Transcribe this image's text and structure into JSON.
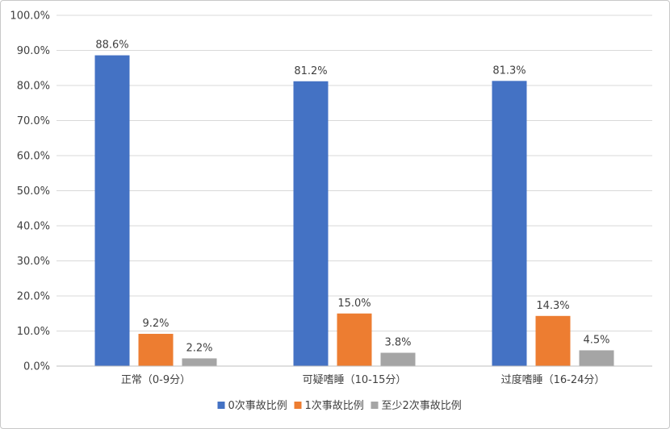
{
  "chart_data": {
    "type": "bar",
    "categories": [
      "正常（0-9分）",
      "可疑嗜睡（10-15分）",
      "过度嗜睡（16-24分）"
    ],
    "series": [
      {
        "name": "0次事故比例",
        "color": "#4472c4",
        "values": [
          88.6,
          81.2,
          81.3
        ],
        "labels": [
          "88.6%",
          "81.2%",
          "81.3%"
        ]
      },
      {
        "name": "1次事故比例",
        "color": "#ed7d31",
        "values": [
          9.2,
          15.0,
          14.3
        ],
        "labels": [
          "9.2%",
          "15.0%",
          "14.3%"
        ]
      },
      {
        "name": "至少2次事故比例",
        "color": "#a5a5a5",
        "values": [
          2.2,
          3.8,
          4.5
        ],
        "labels": [
          "2.2%",
          "3.8%",
          "4.5%"
        ]
      }
    ],
    "ylim": [
      0,
      100
    ],
    "yticks": [
      "0.0%",
      "10.0%",
      "20.0%",
      "30.0%",
      "40.0%",
      "50.0%",
      "60.0%",
      "70.0%",
      "80.0%",
      "90.0%",
      "100.0%"
    ],
    "grid": true,
    "legend": "bottom"
  }
}
